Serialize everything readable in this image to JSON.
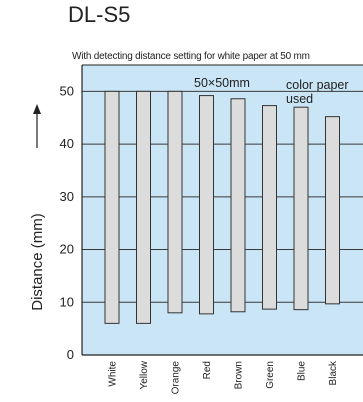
{
  "chart_data": {
    "type": "bar",
    "title": "DL-S5",
    "subtitle": "With detecting distance setting for white paper at 50 mm",
    "ylabel": "Distance (mm)",
    "ylim": [
      0,
      55
    ],
    "yticks": [
      0,
      10,
      20,
      30,
      40,
      50
    ],
    "grid": true,
    "annotation": {
      "size": "50×50mm",
      "text_line1": "color paper",
      "text_line2": "used"
    },
    "categories": [
      "White",
      "Yellow",
      "Orange",
      "Red",
      "Brown",
      "Green",
      "Blue",
      "Black"
    ],
    "series": [
      {
        "lower": [
          6,
          6,
          8,
          7.8,
          8.2,
          8.7,
          8.6,
          9.7
        ],
        "upper": [
          50,
          50,
          50,
          49.2,
          48.6,
          47.3,
          47.0,
          45.2
        ]
      }
    ],
    "colors": {
      "plot_bg": "#c9e5f6",
      "bar_fill": "#dcdcdc",
      "bar_stroke": "#333333",
      "grid": "#3a3a3a"
    }
  }
}
